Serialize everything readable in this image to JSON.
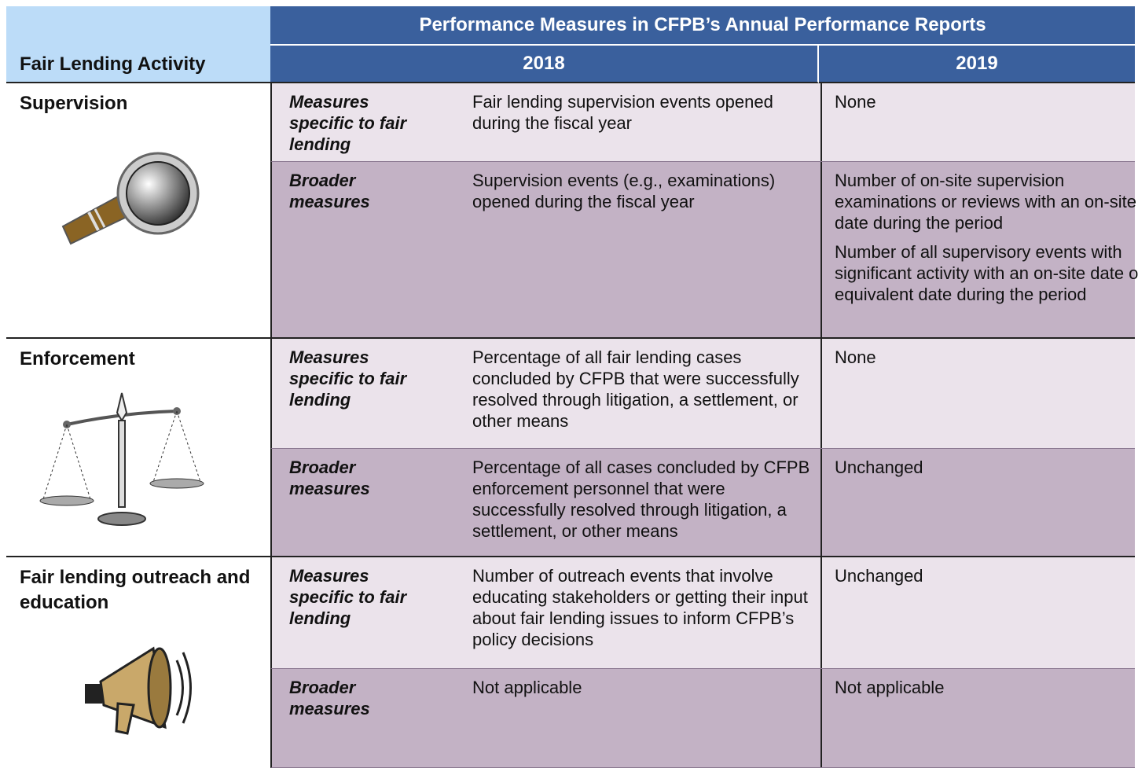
{
  "header": {
    "activity_label": "Fair Lending Activity",
    "title": "Performance Measures in CFPB’s Annual Performance Reports",
    "years": [
      "2018",
      "2019"
    ]
  },
  "activities": [
    {
      "name": "Supervision",
      "measures": [
        {
          "type": "Measures specific to fair lending",
          "col_2018": "Fair lending supervision events opened during the fiscal year",
          "col_2019": [
            "None"
          ]
        },
        {
          "type": "Broader measures",
          "col_2018": "Supervision events (e.g., examinations) opened during the fiscal year",
          "col_2019": [
            "Number of on-site supervision examinations or reviews with an on-site date during the period",
            "Number of all supervisory events with significant activity with an on-site date or equivalent date during the period"
          ]
        }
      ]
    },
    {
      "name": "Enforcement",
      "measures": [
        {
          "type": "Measures specific to fair lending",
          "col_2018": "Percentage of all fair lending cases concluded by CFPB that were successfully resolved through litigation, a settlement, or other means",
          "col_2019": [
            "None"
          ]
        },
        {
          "type": "Broader measures",
          "col_2018": "Percentage of all cases concluded by CFPB enforcement personnel that were successfully resolved through litigation, a settlement, or other means",
          "col_2019": [
            "Unchanged"
          ]
        }
      ]
    },
    {
      "name": "Fair lending outreach and education",
      "measures": [
        {
          "type": "Measures specific to fair lending",
          "col_2018": "Number of outreach events that involve educating stakeholders or getting their input about fair lending issues to inform CFPB’s policy decisions",
          "col_2019": [
            "Unchanged"
          ]
        },
        {
          "type": "Broader measures",
          "col_2018": "Not applicable",
          "col_2019": [
            "Not applicable"
          ]
        }
      ]
    }
  ]
}
